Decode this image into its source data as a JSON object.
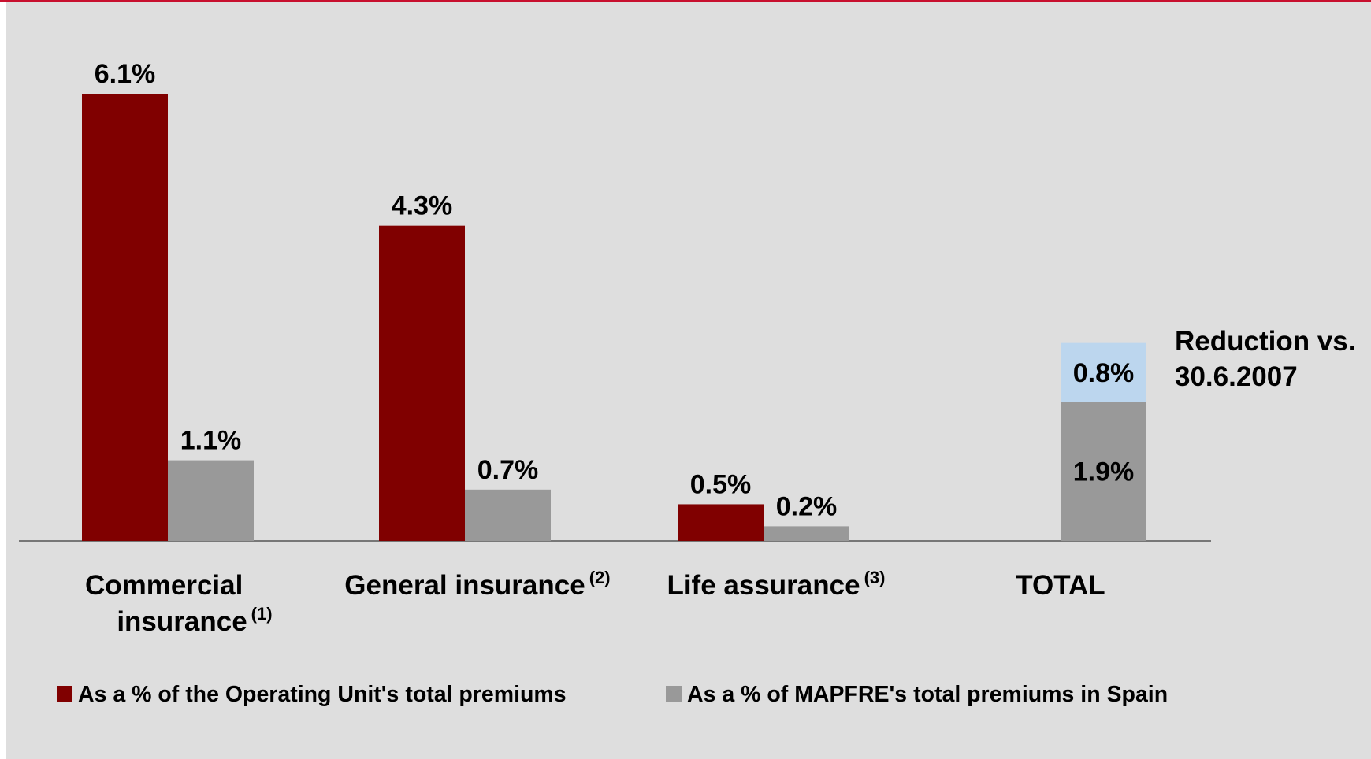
{
  "chart_data": {
    "type": "bar",
    "categories": [
      "Commercial insurance",
      "General insurance",
      "Life assurance",
      "TOTAL"
    ],
    "category_notes": [
      "(1)",
      "(2)",
      "(3)",
      null
    ],
    "series": [
      {
        "name": "As a % of the Operating Unit's total premiums",
        "color": "#800000",
        "values": [
          6.1,
          4.3,
          0.5,
          null
        ],
        "value_labels": [
          "6.1%",
          "4.3%",
          "0.5%",
          null
        ]
      },
      {
        "name": "As a % of MAPFRE's total premiums in Spain",
        "color": "#999999",
        "values": [
          1.1,
          0.7,
          0.2,
          1.9
        ],
        "value_labels": [
          "1.1%",
          "0.7%",
          "0.2%",
          "1.9%"
        ]
      },
      {
        "name": "Reduction vs. 30.6.2007",
        "color": "#bcd6ee",
        "values": [
          null,
          null,
          null,
          0.8
        ],
        "value_labels": [
          null,
          null,
          null,
          "0.8%"
        ],
        "stacked": true
      }
    ],
    "ylim": [
      0,
      6.5
    ],
    "legend": "bottom"
  }
}
